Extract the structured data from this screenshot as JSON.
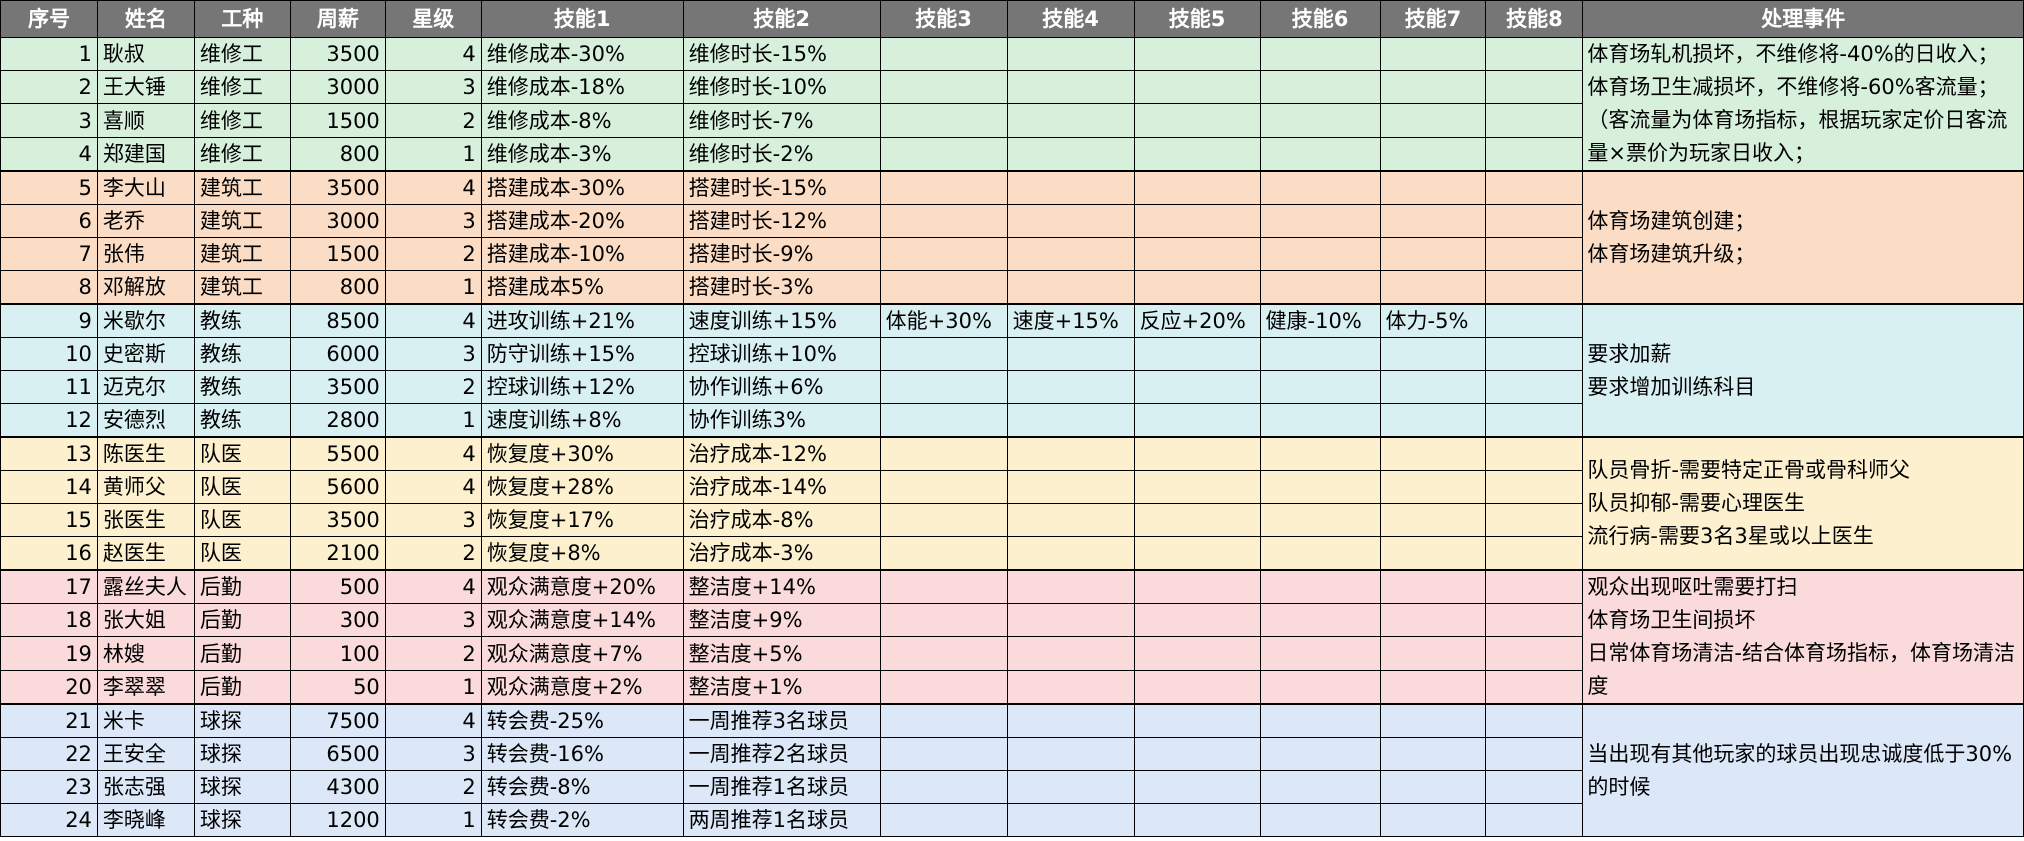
{
  "headers": [
    "序号",
    "姓名",
    "工种",
    "周薪",
    "星级",
    "技能1",
    "技能2",
    "技能3",
    "技能4",
    "技能5",
    "技能6",
    "技能7",
    "技能8",
    "处理事件"
  ],
  "groups": [
    {
      "events": [
        "体育场轧机损坏，不维修将-40%的日收入；",
        "体育场卫生减损坏，不维修将-60%客流量；",
        "（客流量为体育场指标，根据玩家定价日客流量×票价为玩家日收入；"
      ],
      "rows": [
        {
          "id": "1",
          "name": "耿叔",
          "job": "维修工",
          "salary": "3500",
          "star": "4",
          "skills": [
            "维修成本-30%",
            "维修时长-15%",
            "",
            "",
            "",
            "",
            "",
            ""
          ]
        },
        {
          "id": "2",
          "name": "王大锤",
          "job": "维修工",
          "salary": "3000",
          "star": "3",
          "skills": [
            "维修成本-18%",
            "维修时长-10%",
            "",
            "",
            "",
            "",
            "",
            ""
          ]
        },
        {
          "id": "3",
          "name": "喜顺",
          "job": "维修工",
          "salary": "1500",
          "star": "2",
          "skills": [
            "维修成本-8%",
            "维修时长-7%",
            "",
            "",
            "",
            "",
            "",
            ""
          ]
        },
        {
          "id": "4",
          "name": "郑建国",
          "job": "维修工",
          "salary": "800",
          "star": "1",
          "skills": [
            "维修成本-3%",
            "维修时长-2%",
            "",
            "",
            "",
            "",
            "",
            ""
          ]
        }
      ]
    },
    {
      "events": [
        "体育场建筑创建；",
        "体育场建筑升级；"
      ],
      "rows": [
        {
          "id": "5",
          "name": "李大山",
          "job": "建筑工",
          "salary": "3500",
          "star": "4",
          "skills": [
            "搭建成本-30%",
            "搭建时长-15%",
            "",
            "",
            "",
            "",
            "",
            ""
          ]
        },
        {
          "id": "6",
          "name": "老乔",
          "job": "建筑工",
          "salary": "3000",
          "star": "3",
          "skills": [
            "搭建成本-20%",
            "搭建时长-12%",
            "",
            "",
            "",
            "",
            "",
            ""
          ]
        },
        {
          "id": "7",
          "name": "张伟",
          "job": "建筑工",
          "salary": "1500",
          "star": "2",
          "skills": [
            "搭建成本-10%",
            "搭建时长-9%",
            "",
            "",
            "",
            "",
            "",
            ""
          ]
        },
        {
          "id": "8",
          "name": "邓解放",
          "job": "建筑工",
          "salary": "800",
          "star": "1",
          "skills": [
            "搭建成本5%",
            "搭建时长-3%",
            "",
            "",
            "",
            "",
            "",
            ""
          ]
        }
      ]
    },
    {
      "events": [
        "要求加薪",
        "要求增加训练科目"
      ],
      "rows": [
        {
          "id": "9",
          "name": "米歇尔",
          "job": "教练",
          "salary": "8500",
          "star": "4",
          "skills": [
            "进攻训练+21%",
            "速度训练+15%",
            "体能+30%",
            "速度+15%",
            "反应+20%",
            "健康-10%",
            "体力-5%",
            ""
          ]
        },
        {
          "id": "10",
          "name": "史密斯",
          "job": "教练",
          "salary": "6000",
          "star": "3",
          "skills": [
            "防守训练+15%",
            "控球训练+10%",
            "",
            "",
            "",
            "",
            "",
            ""
          ]
        },
        {
          "id": "11",
          "name": "迈克尔",
          "job": "教练",
          "salary": "3500",
          "star": "2",
          "skills": [
            "控球训练+12%",
            "协作训练+6%",
            "",
            "",
            "",
            "",
            "",
            ""
          ]
        },
        {
          "id": "12",
          "name": "安德烈",
          "job": "教练",
          "salary": "2800",
          "star": "1",
          "skills": [
            "速度训练+8%",
            "协作训练3%",
            "",
            "",
            "",
            "",
            "",
            ""
          ]
        }
      ]
    },
    {
      "events": [
        "队员骨折-需要特定正骨或骨科师父",
        "队员抑郁-需要心理医生",
        "流行病-需要3名3星或以上医生"
      ],
      "rows": [
        {
          "id": "13",
          "name": "陈医生",
          "job": "队医",
          "salary": "5500",
          "star": "4",
          "skills": [
            "恢复度+30%",
            "治疗成本-12%",
            "",
            "",
            "",
            "",
            "",
            ""
          ]
        },
        {
          "id": "14",
          "name": "黄师父",
          "job": "队医",
          "salary": "5600",
          "star": "4",
          "skills": [
            "恢复度+28%",
            "治疗成本-14%",
            "",
            "",
            "",
            "",
            "",
            ""
          ]
        },
        {
          "id": "15",
          "name": "张医生",
          "job": "队医",
          "salary": "3500",
          "star": "3",
          "skills": [
            "恢复度+17%",
            "治疗成本-8%",
            "",
            "",
            "",
            "",
            "",
            ""
          ]
        },
        {
          "id": "16",
          "name": "赵医生",
          "job": "队医",
          "salary": "2100",
          "star": "2",
          "skills": [
            "恢复度+8%",
            "治疗成本-3%",
            "",
            "",
            "",
            "",
            "",
            ""
          ]
        }
      ]
    },
    {
      "events": [
        "观众出现呕吐需要打扫",
        "体育场卫生间损坏",
        "日常体育场清洁-结合体育场指标，体育场清洁度"
      ],
      "rows": [
        {
          "id": "17",
          "name": "露丝夫人",
          "job": "后勤",
          "salary": "500",
          "star": "4",
          "skills": [
            "观众满意度+20%",
            "整洁度+14%",
            "",
            "",
            "",
            "",
            "",
            ""
          ]
        },
        {
          "id": "18",
          "name": "张大姐",
          "job": "后勤",
          "salary": "300",
          "star": "3",
          "skills": [
            "观众满意度+14%",
            "整洁度+9%",
            "",
            "",
            "",
            "",
            "",
            ""
          ]
        },
        {
          "id": "19",
          "name": "林嫂",
          "job": "后勤",
          "salary": "100",
          "star": "2",
          "skills": [
            "观众满意度+7%",
            "整洁度+5%",
            "",
            "",
            "",
            "",
            "",
            ""
          ]
        },
        {
          "id": "20",
          "name": "李翠翠",
          "job": "后勤",
          "salary": "50",
          "star": "1",
          "skills": [
            "观众满意度+2%",
            "整洁度+1%",
            "",
            "",
            "",
            "",
            "",
            ""
          ]
        }
      ]
    },
    {
      "events": [
        "当出现有其他玩家的球员出现忠诚度低于30%的时候"
      ],
      "rows": [
        {
          "id": "21",
          "name": "米卡",
          "job": "球探",
          "salary": "7500",
          "star": "4",
          "skills": [
            "转会费-25%",
            "一周推荐3名球员",
            "",
            "",
            "",
            "",
            "",
            ""
          ]
        },
        {
          "id": "22",
          "name": "王安全",
          "job": "球探",
          "salary": "6500",
          "star": "3",
          "skills": [
            "转会费-16%",
            "一周推荐2名球员",
            "",
            "",
            "",
            "",
            "",
            ""
          ]
        },
        {
          "id": "23",
          "name": "张志强",
          "job": "球探",
          "salary": "4300",
          "star": "2",
          "skills": [
            "转会费-8%",
            "一周推荐1名球员",
            "",
            "",
            "",
            "",
            "",
            ""
          ]
        },
        {
          "id": "24",
          "name": "李晓峰",
          "job": "球探",
          "salary": "1200",
          "star": "1",
          "skills": [
            "转会费-2%",
            "两周推荐1名球员",
            "",
            "",
            "",
            "",
            "",
            ""
          ]
        }
      ]
    }
  ]
}
